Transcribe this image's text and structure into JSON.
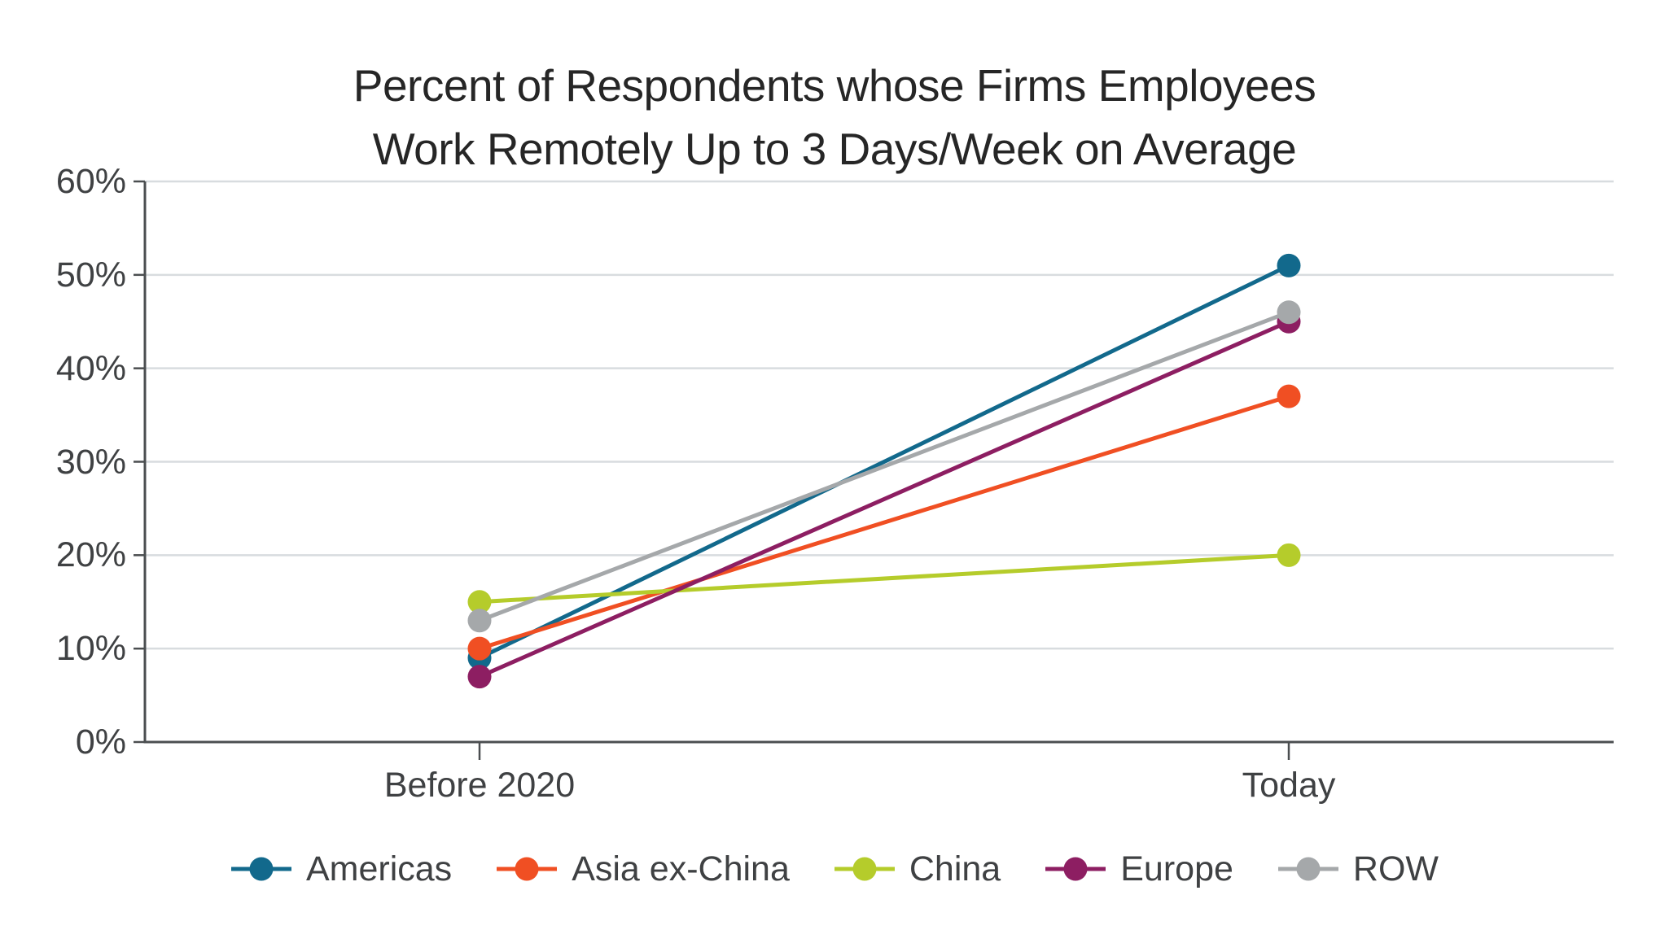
{
  "title": {
    "line1": "Percent of Respondents whose Firms Employees",
    "line2": "Work Remotely Up to 3 Days/Week on Average"
  },
  "chart_data": {
    "type": "line",
    "categories": [
      "Before 2020",
      "Today"
    ],
    "series": [
      {
        "name": "Americas",
        "color": "#12698c",
        "values": [
          9,
          51
        ]
      },
      {
        "name": "Asia ex-China",
        "color": "#f04f23",
        "values": [
          10,
          37
        ]
      },
      {
        "name": "China",
        "color": "#b5cc2b",
        "values": [
          15,
          20
        ]
      },
      {
        "name": "Europe",
        "color": "#8d1e62",
        "values": [
          7,
          45
        ]
      },
      {
        "name": "ROW",
        "color": "#a5a8aa",
        "values": [
          13,
          46
        ]
      }
    ],
    "ylim": [
      0,
      60
    ],
    "ytick_step": 10,
    "ytick_labels": [
      "0%",
      "10%",
      "20%",
      "30%",
      "40%",
      "50%",
      "60%"
    ],
    "grid": true,
    "legend_position": "bottom",
    "marker": "circle-on-line"
  },
  "colors": {
    "background": "#ffffff",
    "grid": "#d8dcdf",
    "axis": "#4b4e50",
    "tick": "#4b4e50",
    "label_text": "#3f4143",
    "title_text": "#262626"
  }
}
